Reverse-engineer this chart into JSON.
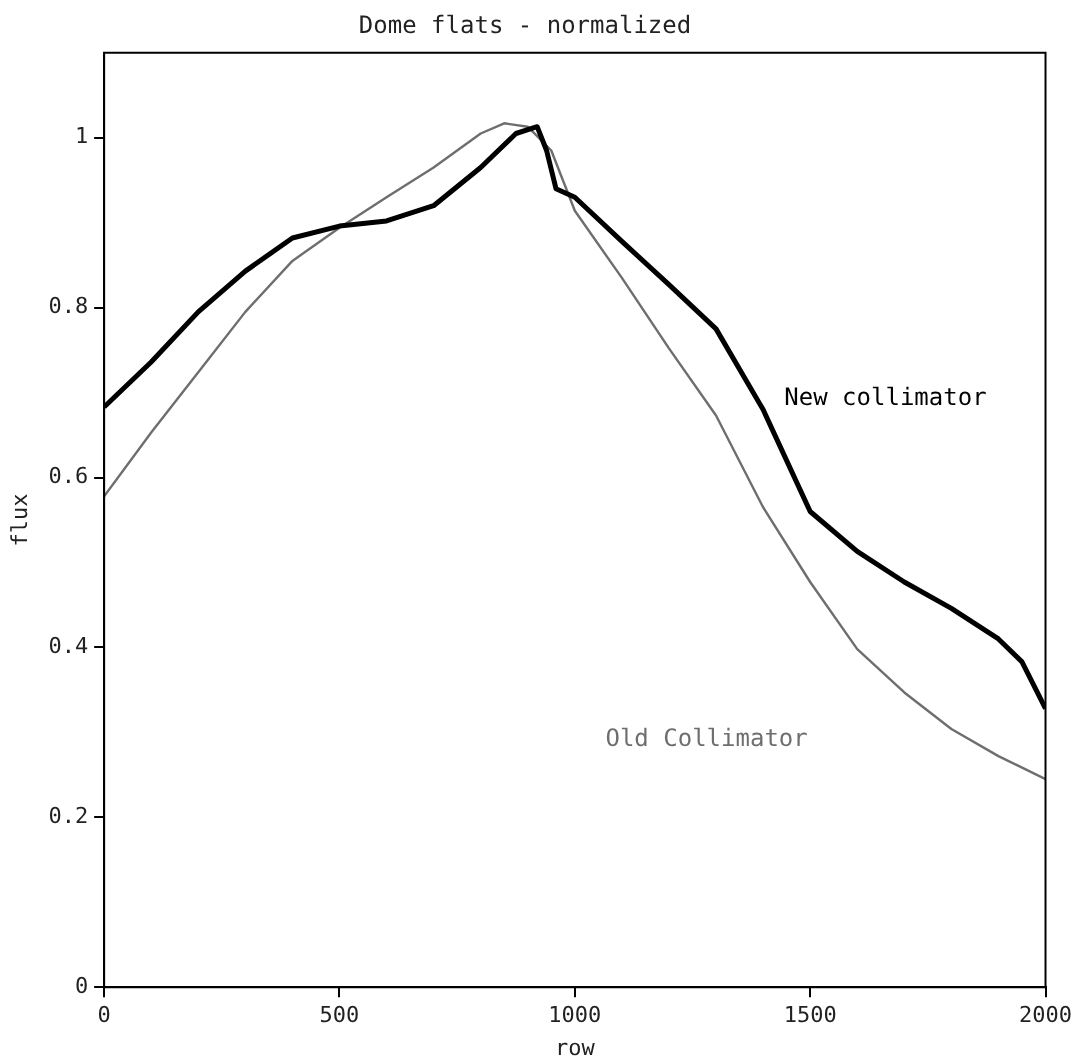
{
  "chart_data": {
    "type": "line",
    "title": "Dome flats - normalized",
    "xlabel": "row",
    "ylabel": "flux",
    "xlim": [
      0,
      2000
    ],
    "ylim": [
      0,
      1.1
    ],
    "xticks": [
      0,
      500,
      1000,
      1500,
      2000
    ],
    "yticks": [
      0,
      0.2,
      0.4,
      0.6,
      0.8,
      1
    ],
    "grid": false,
    "legend": false,
    "marker": "none",
    "line_style": "solid",
    "series": [
      {
        "name": "New collimator",
        "color": "#000000",
        "x": [
          0,
          100,
          200,
          300,
          400,
          500,
          600,
          700,
          800,
          875,
          920,
          940,
          960,
          1000,
          1100,
          1200,
          1300,
          1400,
          1500,
          1600,
          1700,
          1800,
          1900,
          1950,
          2000
        ],
        "values": [
          0.683,
          0.736,
          0.795,
          0.843,
          0.882,
          0.896,
          0.902,
          0.92,
          0.965,
          1.005,
          1.013,
          0.985,
          0.94,
          0.93,
          0.878,
          0.827,
          0.775,
          0.68,
          0.56,
          0.513,
          0.477,
          0.446,
          0.41,
          0.383,
          0.328
        ]
      },
      {
        "name": "Old Collimator",
        "color": "#6e6e6e",
        "x": [
          0,
          100,
          200,
          300,
          400,
          500,
          600,
          700,
          800,
          850,
          900,
          950,
          1000,
          1100,
          1200,
          1300,
          1400,
          1500,
          1600,
          1700,
          1800,
          1900,
          2000
        ],
        "values": [
          0.578,
          0.653,
          0.724,
          0.795,
          0.855,
          0.894,
          0.93,
          0.965,
          1.005,
          1.017,
          1.013,
          0.985,
          0.914,
          0.835,
          0.752,
          0.673,
          0.565,
          0.477,
          0.398,
          0.347,
          0.304,
          0.272,
          0.245
        ]
      }
    ]
  }
}
